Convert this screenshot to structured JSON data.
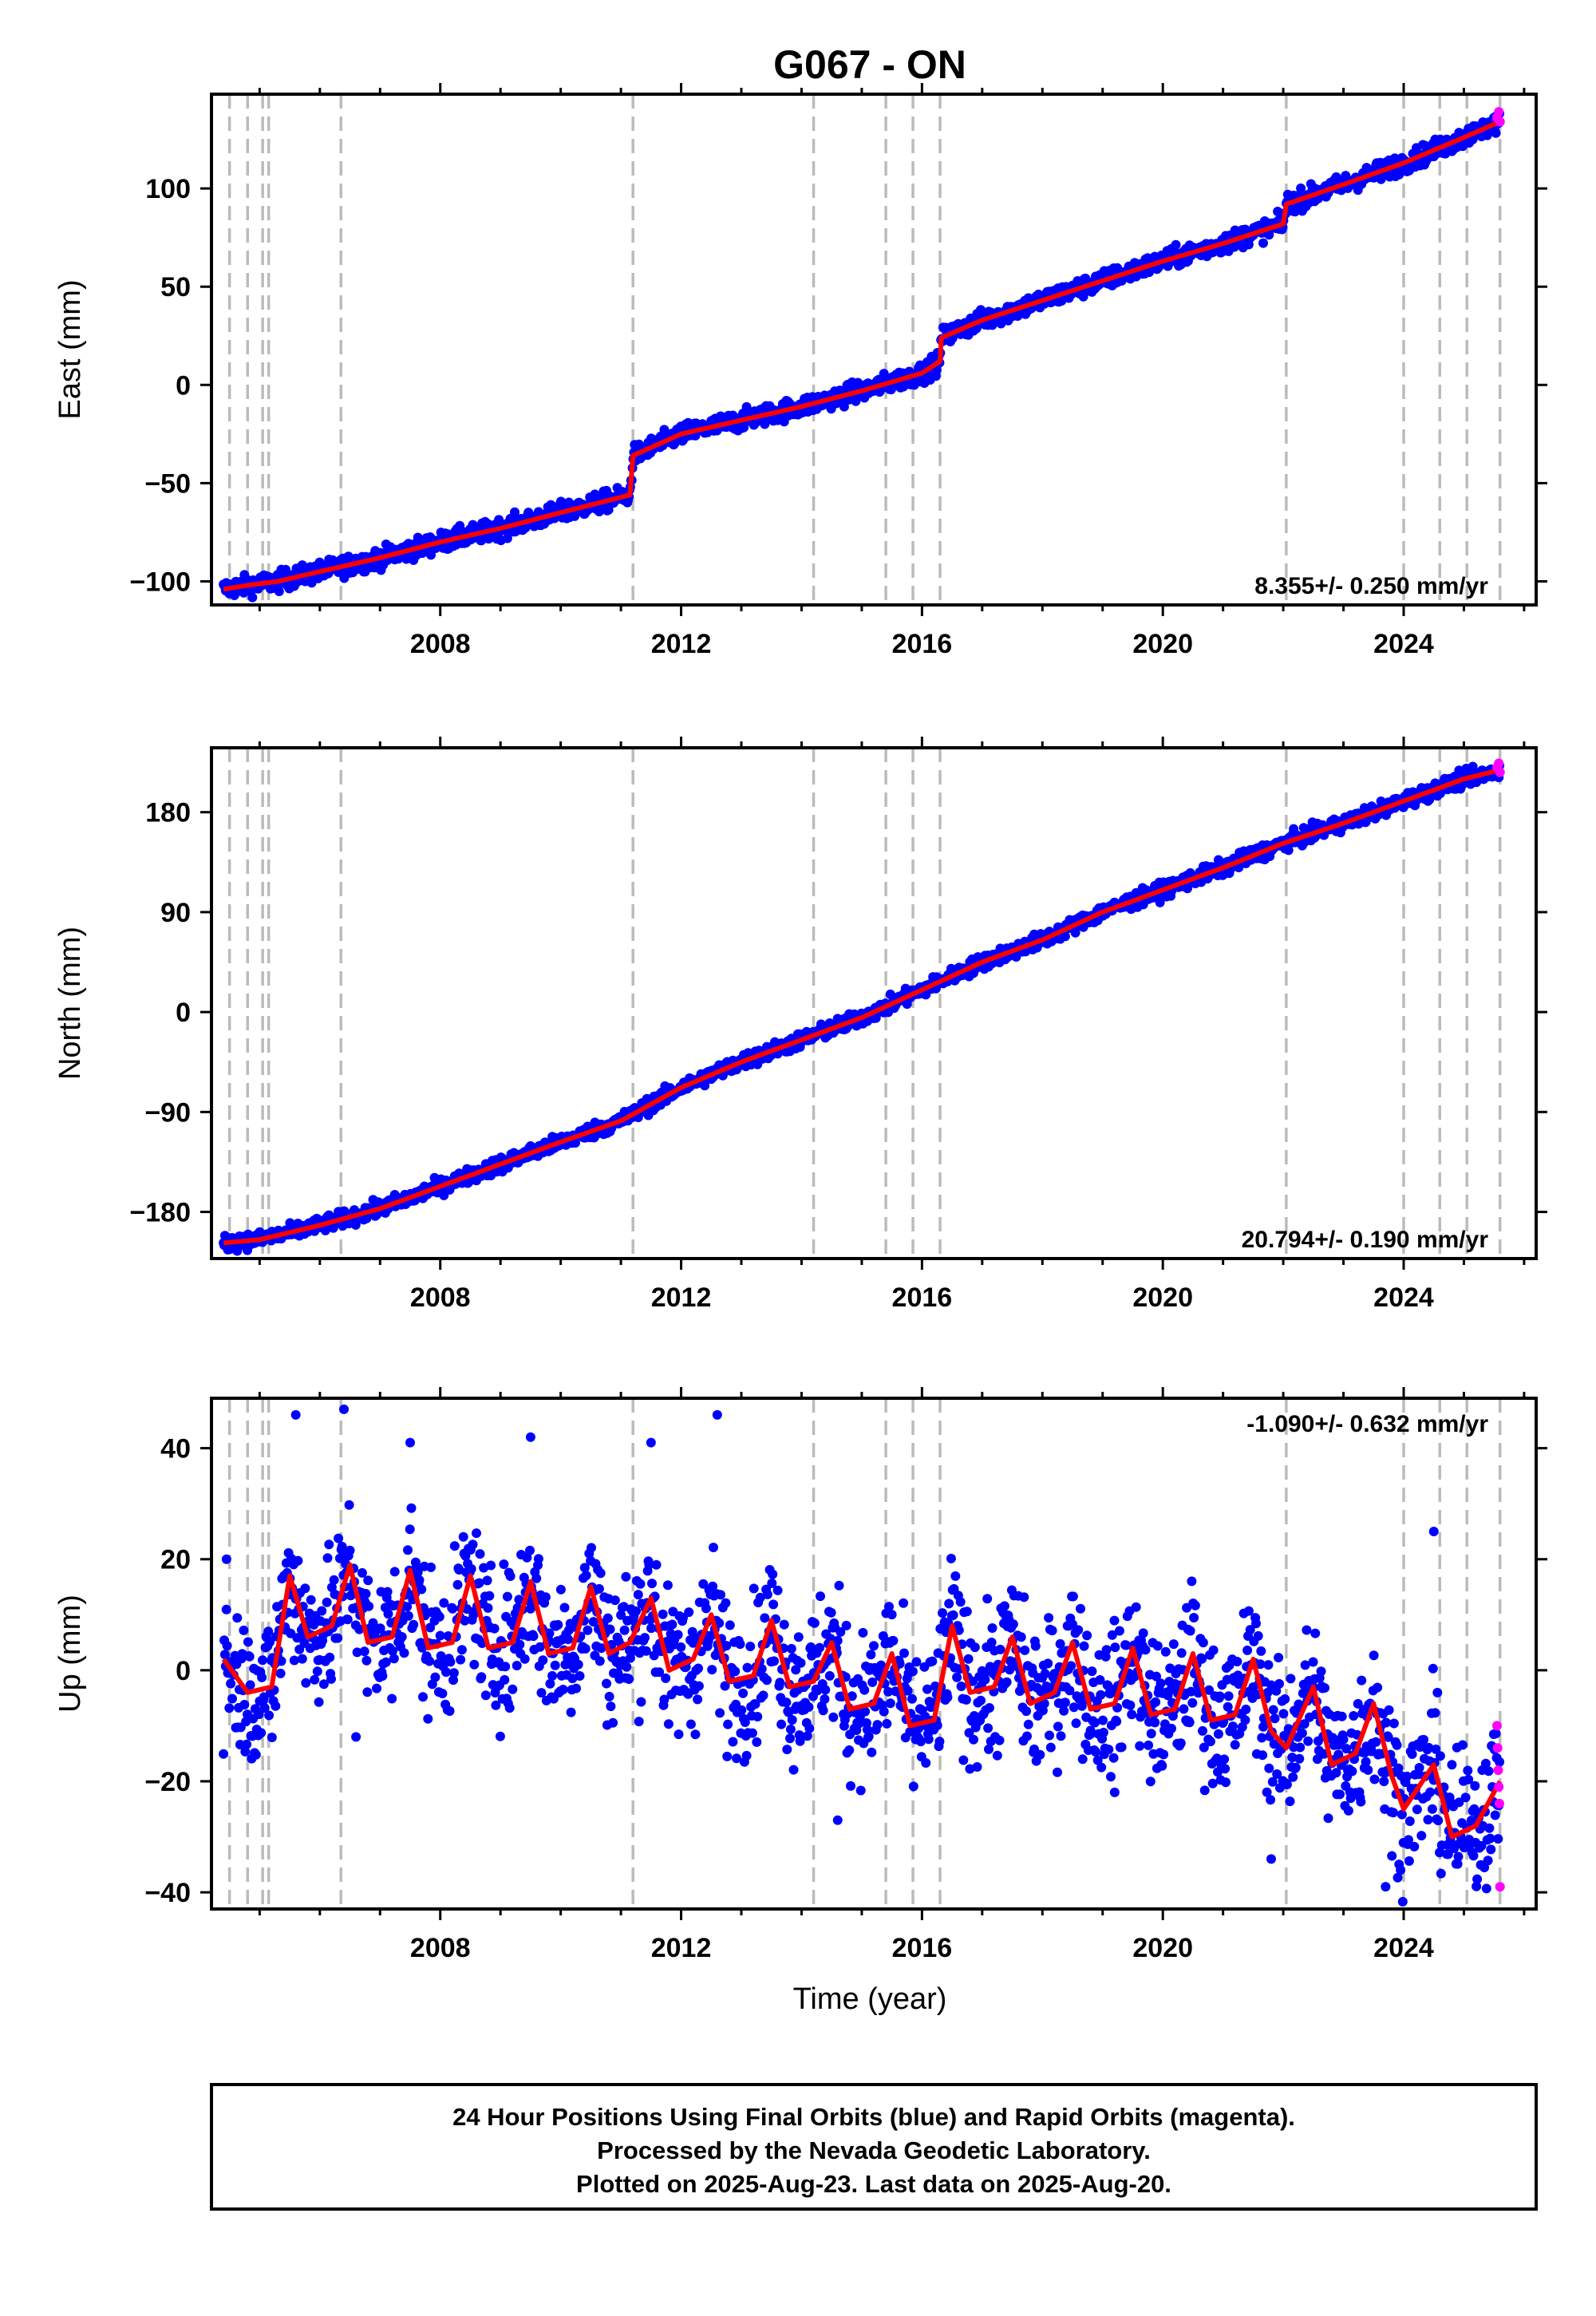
{
  "title": "G067 - ON",
  "colors": {
    "final_orbits": "#0000ff",
    "rapid_orbits": "#ff00ff",
    "model": "#ff0000",
    "event_lines": "#bbbbbb",
    "frame": "#000000"
  },
  "chart_data": [
    {
      "type": "scatter",
      "component": "east",
      "ylabel": "East (mm)",
      "xlabel": "",
      "xlim": [
        2004.2,
        2026.2
      ],
      "ylim": [
        -112,
        148
      ],
      "yticks": [
        -100,
        -50,
        0,
        50,
        100
      ],
      "xticks": [
        2008,
        2012,
        2016,
        2020,
        2024
      ],
      "grid": false,
      "rate_label": "8.355+/- 0.250 mm/yr",
      "rate_position": "bottom-right",
      "event_lines": [
        2004.5,
        2004.8,
        2005.05,
        2005.15,
        2006.35,
        2011.2,
        2014.2,
        2015.4,
        2015.85,
        2016.3,
        2022.05,
        2024.0,
        2024.6,
        2025.05,
        2025.6
      ],
      "model_trend": [
        [
          2004.4,
          -104
        ],
        [
          2004.8,
          -102
        ],
        [
          2005.3,
          -100
        ],
        [
          2006.0,
          -95
        ],
        [
          2007.0,
          -88
        ],
        [
          2008.0,
          -80
        ],
        [
          2009.0,
          -73
        ],
        [
          2010.0,
          -65
        ],
        [
          2011.15,
          -56
        ],
        [
          2011.2,
          -36
        ],
        [
          2012.0,
          -25
        ],
        [
          2013.0,
          -18
        ],
        [
          2014.0,
          -11
        ],
        [
          2015.0,
          -3
        ],
        [
          2016.0,
          6
        ],
        [
          2016.3,
          12
        ],
        [
          2016.32,
          24
        ],
        [
          2017.0,
          33
        ],
        [
          2018.0,
          43
        ],
        [
          2019.0,
          53
        ],
        [
          2020.0,
          63
        ],
        [
          2021.0,
          72
        ],
        [
          2022.0,
          82
        ],
        [
          2022.05,
          92
        ],
        [
          2023.0,
          102
        ],
        [
          2024.0,
          113
        ],
        [
          2025.0,
          126
        ],
        [
          2025.6,
          134
        ]
      ],
      "rapid_points": [
        [
          2025.55,
          136
        ],
        [
          2025.58,
          139
        ],
        [
          2025.6,
          134
        ]
      ]
    },
    {
      "type": "scatter",
      "component": "north",
      "ylabel": "North (mm)",
      "xlabel": "",
      "xlim": [
        2004.2,
        2026.2
      ],
      "ylim": [
        -222,
        238
      ],
      "yticks": [
        -180,
        -90,
        0,
        90,
        180
      ],
      "xticks": [
        2008,
        2012,
        2016,
        2020,
        2024
      ],
      "grid": false,
      "rate_label": "20.794+/- 0.190 mm/yr",
      "rate_position": "bottom-right",
      "event_lines": [
        2004.5,
        2004.8,
        2005.05,
        2005.15,
        2006.35,
        2011.2,
        2014.2,
        2015.4,
        2015.85,
        2016.3,
        2022.05,
        2024.0,
        2024.6,
        2025.05,
        2025.6
      ],
      "model_trend": [
        [
          2004.4,
          -208
        ],
        [
          2005.0,
          -205
        ],
        [
          2006.0,
          -192
        ],
        [
          2007.0,
          -177
        ],
        [
          2008.0,
          -157
        ],
        [
          2009.0,
          -137
        ],
        [
          2010.0,
          -117
        ],
        [
          2011.0,
          -98
        ],
        [
          2012.0,
          -68
        ],
        [
          2013.0,
          -45
        ],
        [
          2014.0,
          -25
        ],
        [
          2015.0,
          -5
        ],
        [
          2016.0,
          20
        ],
        [
          2017.0,
          45
        ],
        [
          2018.0,
          65
        ],
        [
          2019.0,
          90
        ],
        [
          2020.0,
          110
        ],
        [
          2021.0,
          130
        ],
        [
          2022.0,
          152
        ],
        [
          2023.0,
          170
        ],
        [
          2024.0,
          190
        ],
        [
          2025.0,
          210
        ],
        [
          2025.6,
          218
        ]
      ],
      "rapid_points": [
        [
          2025.55,
          220
        ],
        [
          2025.58,
          224
        ],
        [
          2025.6,
          216
        ]
      ]
    },
    {
      "type": "scatter",
      "component": "up",
      "ylabel": "Up (mm)",
      "xlabel": "Time (year)",
      "xlim": [
        2004.2,
        2026.2
      ],
      "ylim": [
        -43,
        49
      ],
      "yticks": [
        -40,
        -20,
        0,
        20,
        40
      ],
      "xticks": [
        2008,
        2012,
        2016,
        2020,
        2024
      ],
      "grid": false,
      "rate_label": "-1.090+/- 0.632 mm/yr",
      "rate_position": "top-right",
      "event_lines": [
        2004.5,
        2004.8,
        2005.05,
        2005.15,
        2006.35,
        2011.2,
        2014.2,
        2015.4,
        2015.85,
        2016.3,
        2022.05,
        2024.0,
        2024.6,
        2025.05,
        2025.6
      ],
      "model_trend": [
        [
          2004.4,
          2
        ],
        [
          2004.8,
          -4
        ],
        [
          2005.2,
          -3
        ],
        [
          2005.5,
          17
        ],
        [
          2005.8,
          6
        ],
        [
          2006.2,
          8
        ],
        [
          2006.5,
          19
        ],
        [
          2006.8,
          5
        ],
        [
          2007.2,
          6
        ],
        [
          2007.5,
          18
        ],
        [
          2007.8,
          4
        ],
        [
          2008.2,
          5
        ],
        [
          2008.5,
          17
        ],
        [
          2008.8,
          4
        ],
        [
          2009.2,
          5
        ],
        [
          2009.5,
          16
        ],
        [
          2009.8,
          3
        ],
        [
          2010.2,
          4
        ],
        [
          2010.5,
          15
        ],
        [
          2010.8,
          3
        ],
        [
          2011.15,
          5
        ],
        [
          2011.5,
          13
        ],
        [
          2011.8,
          0
        ],
        [
          2012.2,
          2
        ],
        [
          2012.5,
          10
        ],
        [
          2012.8,
          -2
        ],
        [
          2013.2,
          -1
        ],
        [
          2013.5,
          9
        ],
        [
          2013.8,
          -3
        ],
        [
          2014.2,
          -2
        ],
        [
          2014.5,
          5
        ],
        [
          2014.8,
          -7
        ],
        [
          2015.2,
          -6
        ],
        [
          2015.5,
          3
        ],
        [
          2015.8,
          -10
        ],
        [
          2016.2,
          -9
        ],
        [
          2016.5,
          8
        ],
        [
          2016.8,
          -4
        ],
        [
          2017.2,
          -3
        ],
        [
          2017.5,
          6
        ],
        [
          2017.8,
          -6
        ],
        [
          2018.2,
          -4
        ],
        [
          2018.5,
          5
        ],
        [
          2018.8,
          -7
        ],
        [
          2019.2,
          -6
        ],
        [
          2019.5,
          4
        ],
        [
          2019.8,
          -8
        ],
        [
          2020.2,
          -7
        ],
        [
          2020.5,
          3
        ],
        [
          2020.8,
          -9
        ],
        [
          2021.2,
          -8
        ],
        [
          2021.5,
          2
        ],
        [
          2021.8,
          -11
        ],
        [
          2022.05,
          -14
        ],
        [
          2022.5,
          -3
        ],
        [
          2022.8,
          -17
        ],
        [
          2023.2,
          -15
        ],
        [
          2023.5,
          -6
        ],
        [
          2023.8,
          -19
        ],
        [
          2024.0,
          -25
        ],
        [
          2024.5,
          -17
        ],
        [
          2024.8,
          -30
        ],
        [
          2025.2,
          -28
        ],
        [
          2025.6,
          -20
        ]
      ],
      "rapid_points": [
        [
          2025.55,
          -10
        ],
        [
          2025.56,
          -14
        ],
        [
          2025.57,
          -18
        ],
        [
          2025.58,
          -21
        ],
        [
          2025.59,
          -24
        ],
        [
          2025.6,
          -39
        ]
      ],
      "outliers": [
        [
          2004.45,
          20
        ],
        [
          2005.6,
          46
        ],
        [
          2006.4,
          47
        ],
        [
          2007.5,
          41
        ],
        [
          2009.5,
          42
        ],
        [
          2011.5,
          41
        ],
        [
          2012.6,
          46
        ],
        [
          2006.6,
          -12
        ],
        [
          2014.6,
          -27
        ],
        [
          2019.2,
          -22
        ],
        [
          2021.8,
          -34
        ],
        [
          2023.7,
          -39
        ],
        [
          2024.5,
          25
        ]
      ]
    }
  ],
  "footer": {
    "line1": "24 Hour Positions Using Final Orbits (blue) and Rapid Orbits (magenta).",
    "line2": "Processed by the Nevada Geodetic Laboratory.",
    "line3": "Plotted on 2025-Aug-23. Last data on 2025-Aug-20."
  }
}
